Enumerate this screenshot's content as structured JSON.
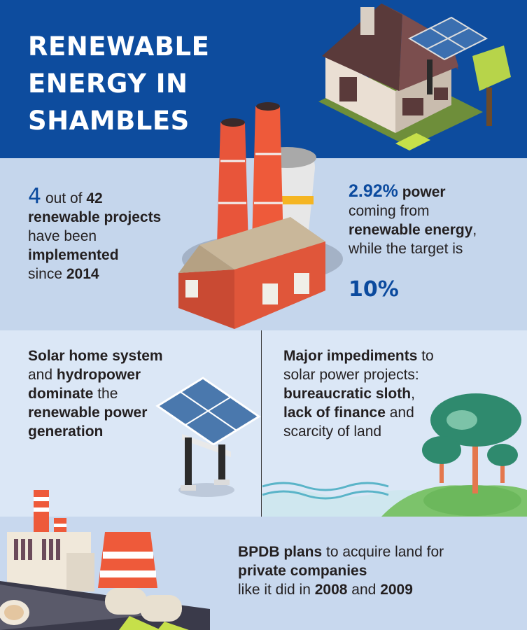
{
  "header": {
    "title": "RENEWABLE ENERGY IN SHAMBLES"
  },
  "stat_projects": {
    "count": "4",
    "out_of": "out of",
    "total": "42",
    "line2": "renewable projects",
    "line3": "have been",
    "line4": "implemented",
    "line5_pre": "since",
    "year": "2014"
  },
  "stat_power": {
    "percent": "2.92%",
    "power": "power",
    "line2": "coming from",
    "line3": "renewable energy",
    "line3_end": ",",
    "line4": "while the target is",
    "target": "10%"
  },
  "solar": {
    "line1": "Solar home system",
    "line2_pre": "and",
    "line2_bold": "hydropower",
    "line3_bold": "dominate",
    "line3_post": "the",
    "line4": "renewable power",
    "line5": "generation"
  },
  "impediments": {
    "line1_bold": "Major impediments",
    "line1_post": "to",
    "line2": "solar power projects:",
    "line3": "bureaucratic sloth",
    "line3_end": ",",
    "line4_bold": "lack of finance",
    "line4_post": "and",
    "line5": "scarcity of land"
  },
  "bpdb": {
    "line1_bold": "BPDB plans",
    "line1_post": "to acquire land for",
    "line2": "private companies",
    "line3_pre": "like it did in",
    "year1": "2008",
    "and": "and",
    "year2": "2009"
  },
  "colors": {
    "header_bg": "#0d4c9e",
    "accent_blue": "#0b4a9e",
    "band2": "#c5d6ec",
    "band3": "#dbe7f6",
    "band4": "#c8d8ee",
    "chimney": "#e8553a"
  },
  "icons": [
    "house-with-solar-panel-illustration",
    "power-plant-illustration",
    "solar-panel-illustration",
    "trees-landscape-illustration",
    "factory-illustration"
  ]
}
